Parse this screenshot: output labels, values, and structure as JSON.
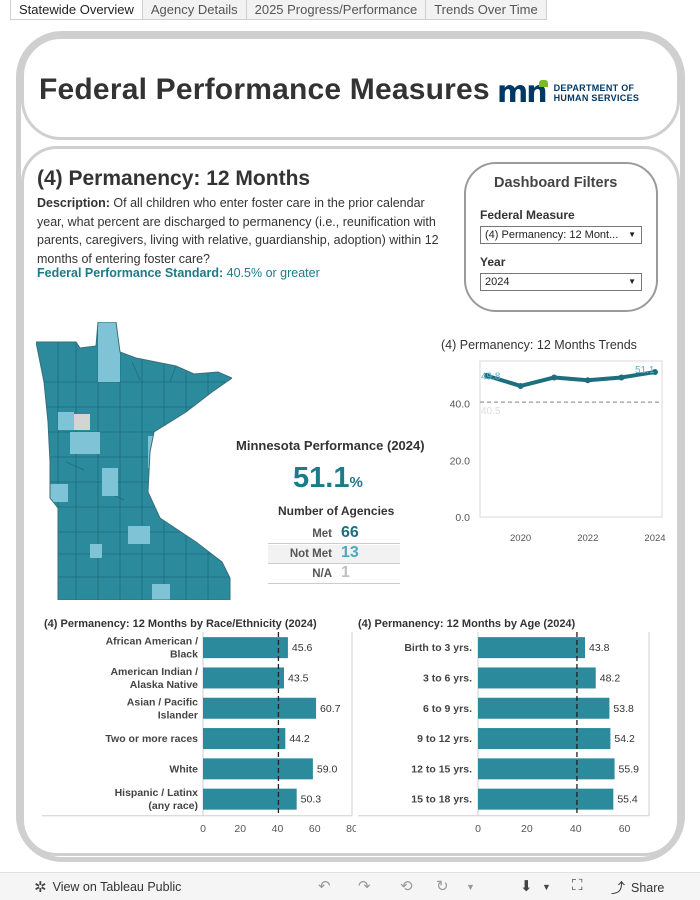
{
  "tabs": [
    "Statewide Overview",
    "Agency Details",
    "2025 Progress/Performance",
    "Trends Over Time"
  ],
  "header": {
    "title": "Federal Performance Measures",
    "logo_line1": "DEPARTMENT OF",
    "logo_line2": "HUMAN SERVICES"
  },
  "measure": {
    "title": "(4) Permanency: 12 Months",
    "description_label": "Description:",
    "description": "Of all children who enter foster care in the prior calendar year, what percent are discharged to permanency (i.e., reunification with parents, caregivers, living with relative, guardianship, adoption) within 12 months of entering foster care?",
    "standard_label": "Federal Performance Standard:",
    "standard_value": "40.5% or greater"
  },
  "filters": {
    "title": "Dashboard Filters",
    "measure_label": "Federal Measure",
    "measure_value": "(4) Permanency: 12 Mont...",
    "year_label": "Year",
    "year_value": "2024"
  },
  "kpi": {
    "title": "Minnesota Performance (2024)",
    "value": "51.1",
    "unit": "%",
    "agencies_title": "Number of Agencies",
    "met_label": "Met",
    "met_value": "66",
    "notmet_label": "Not Met",
    "notmet_value": "13",
    "na_label": "N/A",
    "na_value": "1"
  },
  "colors": {
    "teal": "#2b8a9c",
    "teal_dark": "#1d7a8a",
    "light_teal": "#7fc3d6",
    "na_gray": "#d4d4d4",
    "met_text": "#1d6f7f",
    "notmet_text": "#4fa8c0",
    "na_text": "#bfbfbf"
  },
  "chart_data": [
    {
      "type": "line",
      "title": "(4) Permanency: 12 Months Trends",
      "x": [
        2019,
        2020,
        2021,
        2022,
        2023,
        2024
      ],
      "series": [
        {
          "values": [
            49.8,
            46.2,
            49.2,
            48.2,
            49.2,
            51.1
          ]
        }
      ],
      "first_label": "49.8",
      "last_label": "51.1",
      "reference_line": 40.5,
      "reference_label": "40.5",
      "ylim": [
        0,
        55
      ],
      "yticks": [
        "0.0",
        "20.0",
        "40.0"
      ],
      "xticks": [
        "2020",
        "2022",
        "2024"
      ]
    },
    {
      "type": "bar",
      "title": "(4) Permanency: 12 Months by Race/Ethnicity (2024)",
      "categories": [
        "African American / Black",
        "American Indian / Alaska Native",
        "Asian / Pacific Islander",
        "Two or more races",
        "White",
        "Hispanic / Latinx (any race)"
      ],
      "values": [
        45.6,
        43.5,
        60.7,
        44.2,
        59.0,
        50.3
      ],
      "labels": [
        "45.6",
        "43.5",
        "60.7",
        "44.2",
        "59.0",
        "50.3"
      ],
      "reference_line": 40.5,
      "xlim": [
        0,
        80
      ],
      "xticks": [
        "0",
        "20",
        "40",
        "60",
        "80"
      ]
    },
    {
      "type": "bar",
      "title": "(4) Permanency: 12 Months by Age (2024)",
      "categories": [
        "Birth to 3 yrs.",
        "3 to 6 yrs.",
        "6 to 9 yrs.",
        "9 to 12 yrs.",
        "12 to 15 yrs.",
        "15 to 18 yrs."
      ],
      "values": [
        43.8,
        48.2,
        53.8,
        54.2,
        55.9,
        55.4
      ],
      "labels": [
        "43.8",
        "48.2",
        "53.8",
        "54.2",
        "55.9",
        "55.4"
      ],
      "reference_line": 40.5,
      "xlim": [
        0,
        70
      ],
      "xticks": [
        "0",
        "20",
        "40",
        "60"
      ]
    }
  ],
  "footer": {
    "view_label": "View on Tableau Public",
    "share_label": "Share"
  }
}
